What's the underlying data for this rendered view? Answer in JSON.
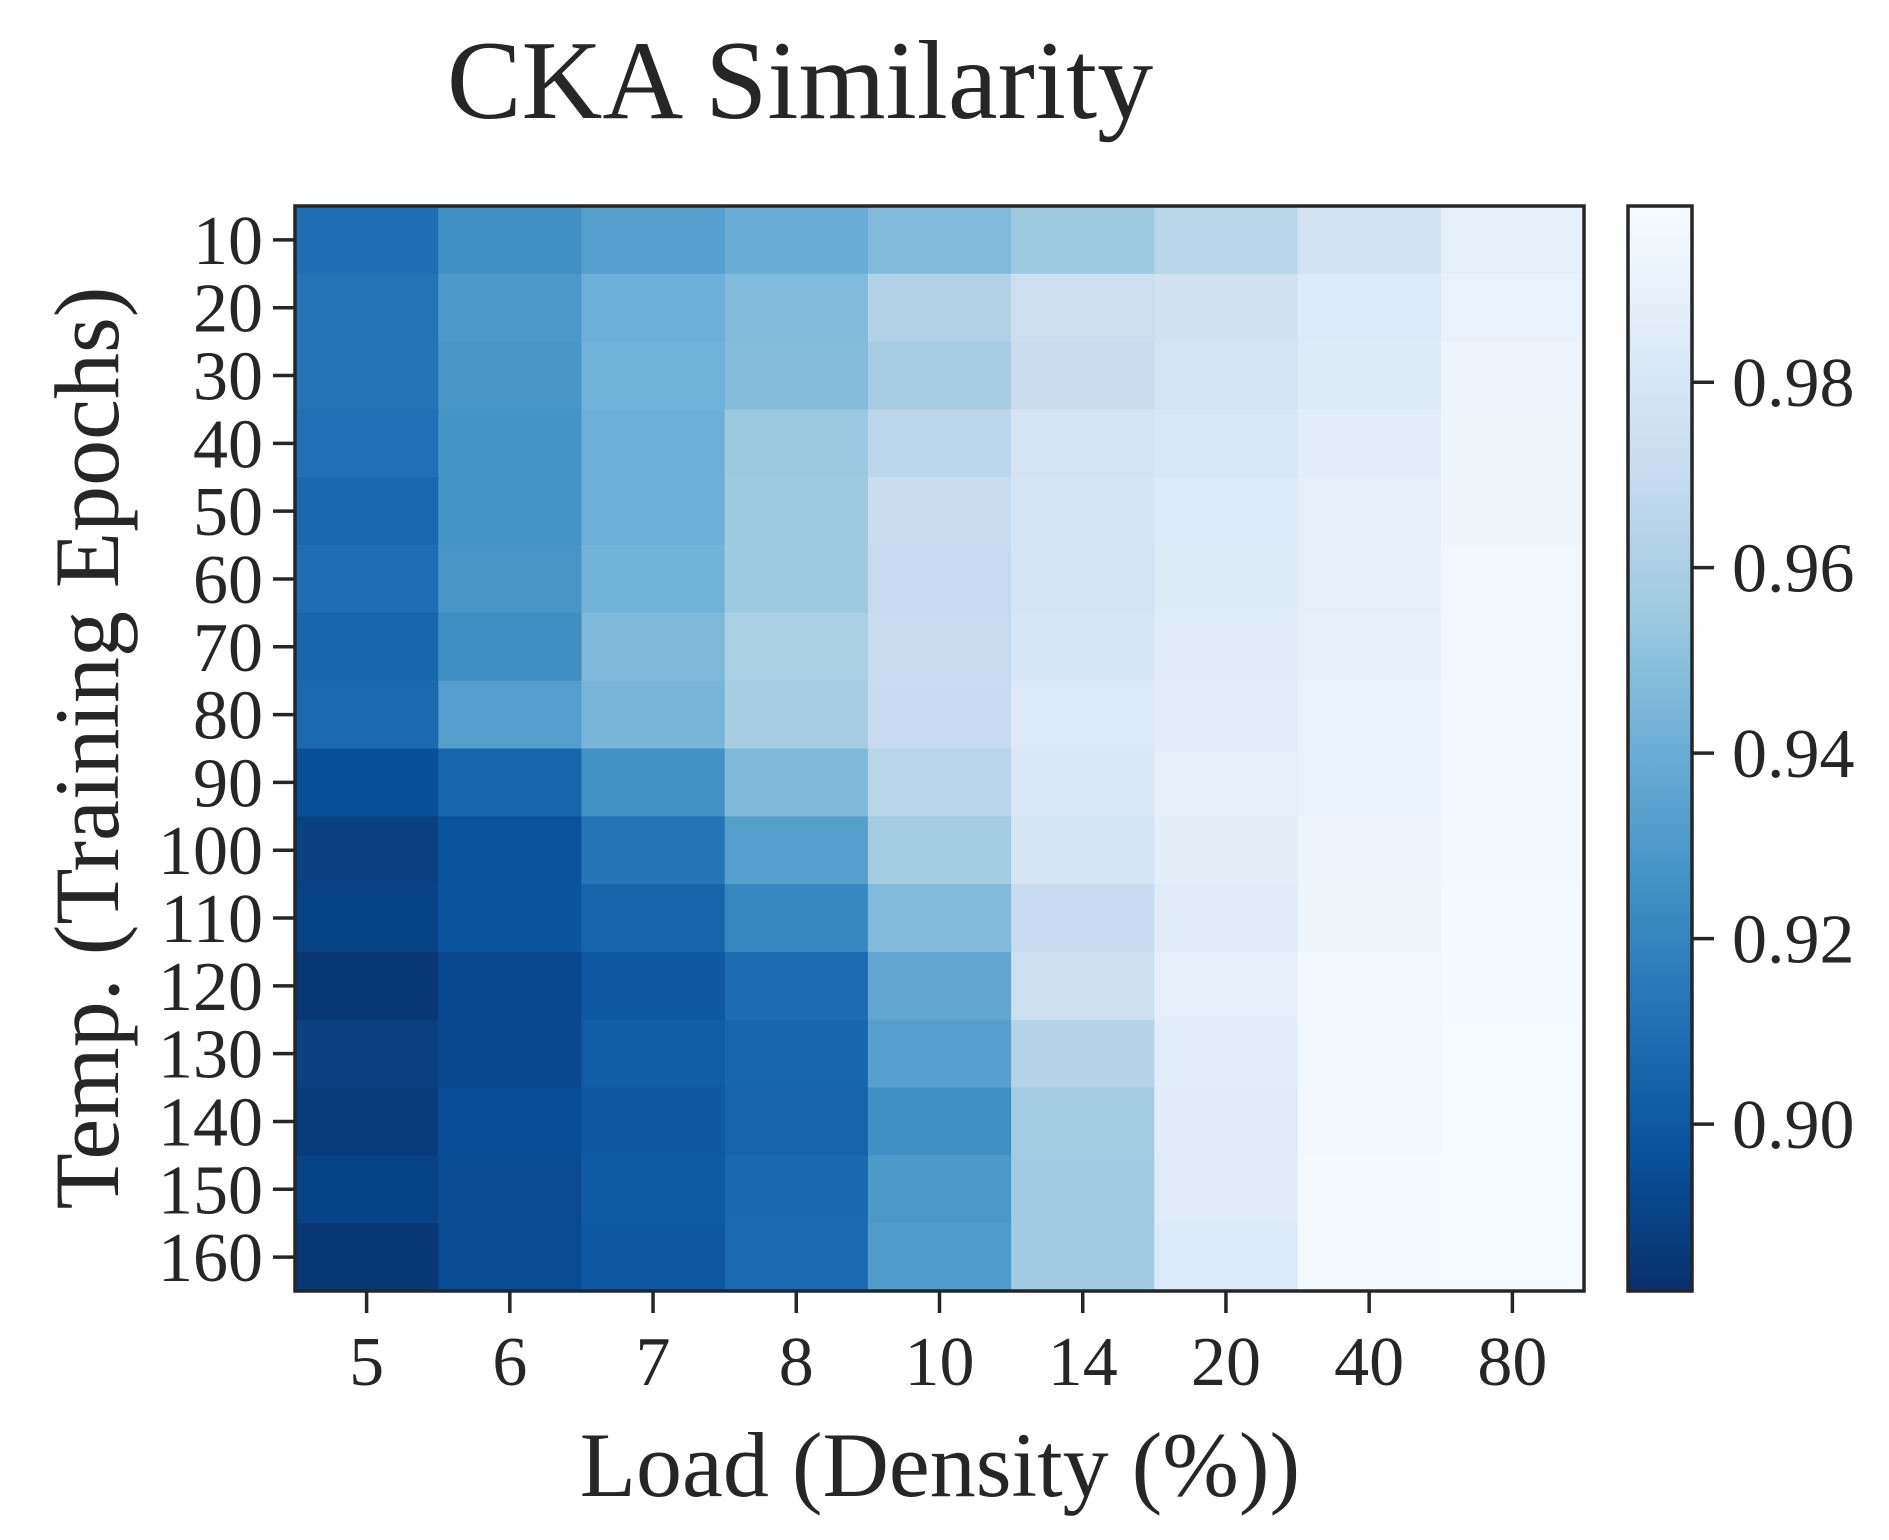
{
  "chart_data": {
    "type": "heatmap",
    "title": "CKA Similarity",
    "xlabel": "Load (Density (%))",
    "ylabel": "Temp. (Training Epochs)",
    "x_categories": [
      "5",
      "6",
      "7",
      "8",
      "10",
      "14",
      "20",
      "40",
      "80"
    ],
    "y_categories": [
      "10",
      "20",
      "30",
      "40",
      "50",
      "60",
      "70",
      "80",
      "90",
      "100",
      "110",
      "120",
      "130",
      "140",
      "150",
      "160"
    ],
    "values": [
      [
        0.91,
        0.925,
        0.933,
        0.94,
        0.947,
        0.955,
        0.965,
        0.977,
        0.988
      ],
      [
        0.912,
        0.929,
        0.941,
        0.947,
        0.962,
        0.973,
        0.976,
        0.983,
        0.991
      ],
      [
        0.912,
        0.928,
        0.942,
        0.948,
        0.958,
        0.972,
        0.978,
        0.984,
        0.993
      ],
      [
        0.911,
        0.927,
        0.941,
        0.954,
        0.966,
        0.978,
        0.981,
        0.986,
        0.994
      ],
      [
        0.907,
        0.927,
        0.941,
        0.955,
        0.972,
        0.979,
        0.983,
        0.988,
        0.994
      ],
      [
        0.91,
        0.928,
        0.943,
        0.955,
        0.97,
        0.978,
        0.984,
        0.989,
        0.995
      ],
      [
        0.906,
        0.924,
        0.946,
        0.959,
        0.971,
        0.98,
        0.985,
        0.99,
        0.995
      ],
      [
        0.908,
        0.932,
        0.944,
        0.958,
        0.97,
        0.983,
        0.986,
        0.991,
        0.996
      ],
      [
        0.896,
        0.906,
        0.926,
        0.946,
        0.965,
        0.982,
        0.988,
        0.991,
        0.996
      ],
      [
        0.889,
        0.898,
        0.913,
        0.933,
        0.957,
        0.979,
        0.987,
        0.993,
        0.996
      ],
      [
        0.89,
        0.898,
        0.905,
        0.921,
        0.947,
        0.97,
        0.985,
        0.994,
        0.997
      ],
      [
        0.885,
        0.893,
        0.9,
        0.909,
        0.937,
        0.973,
        0.988,
        0.995,
        0.997
      ],
      [
        0.889,
        0.893,
        0.902,
        0.906,
        0.933,
        0.964,
        0.986,
        0.995,
        0.998
      ],
      [
        0.887,
        0.895,
        0.9,
        0.905,
        0.925,
        0.957,
        0.985,
        0.996,
        0.998
      ],
      [
        0.89,
        0.894,
        0.901,
        0.907,
        0.929,
        0.956,
        0.985,
        0.997,
        0.998
      ],
      [
        0.885,
        0.894,
        0.9,
        0.908,
        0.931,
        0.956,
        0.983,
        0.997,
        0.998
      ]
    ],
    "colormap": "Blues_r",
    "colorbar": {
      "vmin": 0.882,
      "vmax": 0.999,
      "ticks": [
        0.9,
        0.92,
        0.94,
        0.96,
        0.98
      ],
      "tick_labels": [
        "0.90",
        "0.92",
        "0.94",
        "0.96",
        "0.98"
      ]
    },
    "grid": false,
    "legend": "none"
  }
}
